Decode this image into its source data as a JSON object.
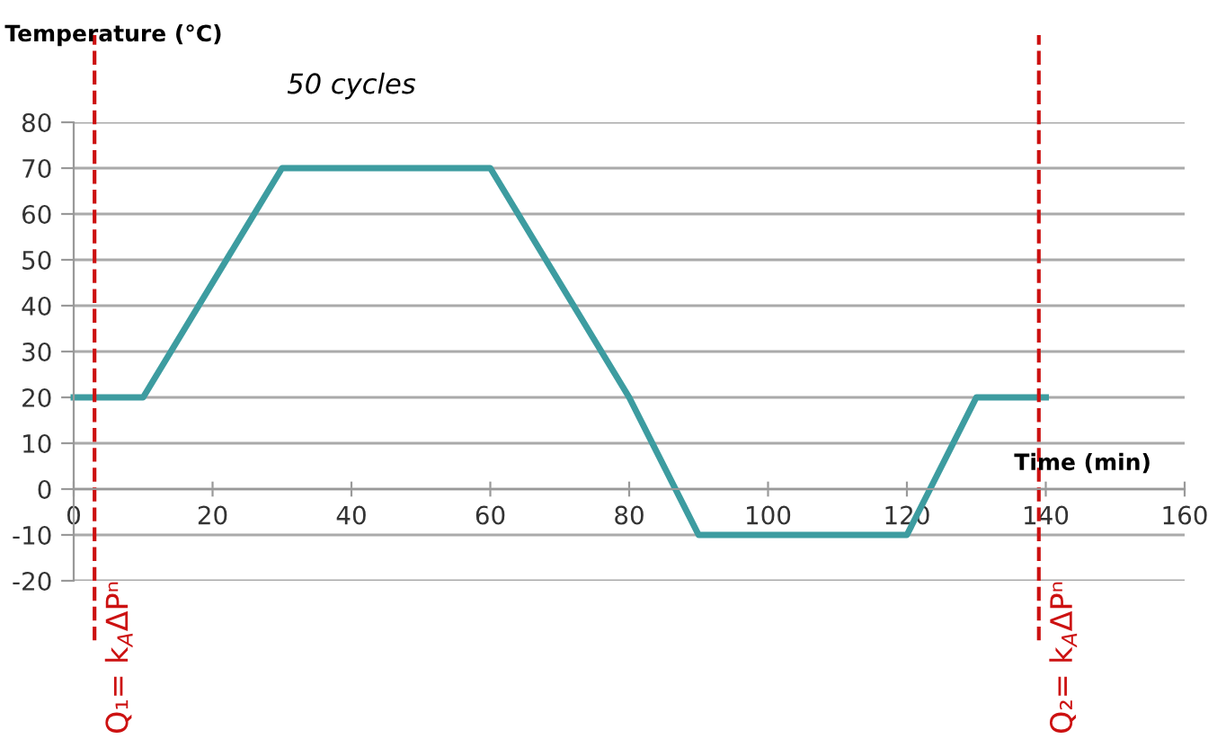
{
  "chart_data": {
    "type": "line",
    "title": "50 cycles",
    "ylabel": "Temperature (°C)",
    "xlabel": "Time (min)",
    "x": [
      0,
      10,
      30,
      60,
      80,
      90,
      120,
      130,
      140
    ],
    "series": [
      {
        "color": "#3d9ca0",
        "values": [
          20,
          20,
          70,
          70,
          20,
          -10,
          -10,
          20,
          20
        ]
      }
    ],
    "xlim": [
      0,
      160
    ],
    "xticks": [
      0,
      20,
      40,
      60,
      80,
      100,
      120,
      140,
      160
    ],
    "ylim": [
      -20,
      80
    ],
    "yticks": [
      -20,
      -10,
      0,
      10,
      20,
      30,
      40,
      50,
      60,
      70,
      80
    ],
    "grid": "y",
    "marker": "none",
    "line_style": "solid",
    "legend": false,
    "ref_lines": [
      {
        "axis": "x",
        "value": 3,
        "label": "Q₁= k$_{A}$ΔPⁿ",
        "color": "#cc1111",
        "line_style": "dashed"
      },
      {
        "axis": "x",
        "value": 139,
        "label": "Q₂= k$_{A}$ΔPⁿ",
        "color": "#cc1111",
        "line_style": "dashed"
      }
    ]
  }
}
